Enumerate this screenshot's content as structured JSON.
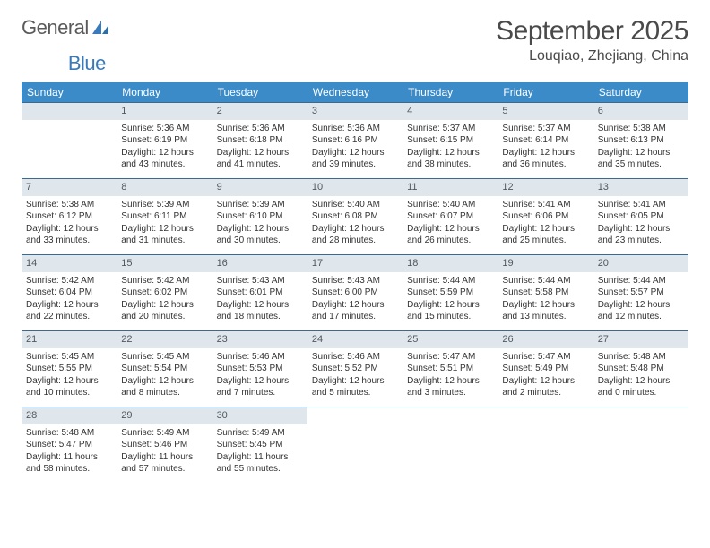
{
  "brand": {
    "part1": "General",
    "part2": "Blue"
  },
  "title": "September 2025",
  "location": "Louqiao, Zhejiang, China",
  "colors": {
    "header_bg": "#3b8bc9",
    "header_text": "#ffffff",
    "daynum_bg": "#e0e7ec",
    "rule": "#3b6a8f",
    "text": "#333333",
    "title_text": "#4a4a4a",
    "logo_gray": "#5a5a5a",
    "logo_blue": "#3a7ab8",
    "page_bg": "#ffffff"
  },
  "dow": [
    "Sunday",
    "Monday",
    "Tuesday",
    "Wednesday",
    "Thursday",
    "Friday",
    "Saturday"
  ],
  "weeks": [
    [
      null,
      {
        "n": "1",
        "sr": "Sunrise: 5:36 AM",
        "ss": "Sunset: 6:19 PM",
        "d1": "Daylight: 12 hours",
        "d2": "and 43 minutes."
      },
      {
        "n": "2",
        "sr": "Sunrise: 5:36 AM",
        "ss": "Sunset: 6:18 PM",
        "d1": "Daylight: 12 hours",
        "d2": "and 41 minutes."
      },
      {
        "n": "3",
        "sr": "Sunrise: 5:36 AM",
        "ss": "Sunset: 6:16 PM",
        "d1": "Daylight: 12 hours",
        "d2": "and 39 minutes."
      },
      {
        "n": "4",
        "sr": "Sunrise: 5:37 AM",
        "ss": "Sunset: 6:15 PM",
        "d1": "Daylight: 12 hours",
        "d2": "and 38 minutes."
      },
      {
        "n": "5",
        "sr": "Sunrise: 5:37 AM",
        "ss": "Sunset: 6:14 PM",
        "d1": "Daylight: 12 hours",
        "d2": "and 36 minutes."
      },
      {
        "n": "6",
        "sr": "Sunrise: 5:38 AM",
        "ss": "Sunset: 6:13 PM",
        "d1": "Daylight: 12 hours",
        "d2": "and 35 minutes."
      }
    ],
    [
      {
        "n": "7",
        "sr": "Sunrise: 5:38 AM",
        "ss": "Sunset: 6:12 PM",
        "d1": "Daylight: 12 hours",
        "d2": "and 33 minutes."
      },
      {
        "n": "8",
        "sr": "Sunrise: 5:39 AM",
        "ss": "Sunset: 6:11 PM",
        "d1": "Daylight: 12 hours",
        "d2": "and 31 minutes."
      },
      {
        "n": "9",
        "sr": "Sunrise: 5:39 AM",
        "ss": "Sunset: 6:10 PM",
        "d1": "Daylight: 12 hours",
        "d2": "and 30 minutes."
      },
      {
        "n": "10",
        "sr": "Sunrise: 5:40 AM",
        "ss": "Sunset: 6:08 PM",
        "d1": "Daylight: 12 hours",
        "d2": "and 28 minutes."
      },
      {
        "n": "11",
        "sr": "Sunrise: 5:40 AM",
        "ss": "Sunset: 6:07 PM",
        "d1": "Daylight: 12 hours",
        "d2": "and 26 minutes."
      },
      {
        "n": "12",
        "sr": "Sunrise: 5:41 AM",
        "ss": "Sunset: 6:06 PM",
        "d1": "Daylight: 12 hours",
        "d2": "and 25 minutes."
      },
      {
        "n": "13",
        "sr": "Sunrise: 5:41 AM",
        "ss": "Sunset: 6:05 PM",
        "d1": "Daylight: 12 hours",
        "d2": "and 23 minutes."
      }
    ],
    [
      {
        "n": "14",
        "sr": "Sunrise: 5:42 AM",
        "ss": "Sunset: 6:04 PM",
        "d1": "Daylight: 12 hours",
        "d2": "and 22 minutes."
      },
      {
        "n": "15",
        "sr": "Sunrise: 5:42 AM",
        "ss": "Sunset: 6:02 PM",
        "d1": "Daylight: 12 hours",
        "d2": "and 20 minutes."
      },
      {
        "n": "16",
        "sr": "Sunrise: 5:43 AM",
        "ss": "Sunset: 6:01 PM",
        "d1": "Daylight: 12 hours",
        "d2": "and 18 minutes."
      },
      {
        "n": "17",
        "sr": "Sunrise: 5:43 AM",
        "ss": "Sunset: 6:00 PM",
        "d1": "Daylight: 12 hours",
        "d2": "and 17 minutes."
      },
      {
        "n": "18",
        "sr": "Sunrise: 5:44 AM",
        "ss": "Sunset: 5:59 PM",
        "d1": "Daylight: 12 hours",
        "d2": "and 15 minutes."
      },
      {
        "n": "19",
        "sr": "Sunrise: 5:44 AM",
        "ss": "Sunset: 5:58 PM",
        "d1": "Daylight: 12 hours",
        "d2": "and 13 minutes."
      },
      {
        "n": "20",
        "sr": "Sunrise: 5:44 AM",
        "ss": "Sunset: 5:57 PM",
        "d1": "Daylight: 12 hours",
        "d2": "and 12 minutes."
      }
    ],
    [
      {
        "n": "21",
        "sr": "Sunrise: 5:45 AM",
        "ss": "Sunset: 5:55 PM",
        "d1": "Daylight: 12 hours",
        "d2": "and 10 minutes."
      },
      {
        "n": "22",
        "sr": "Sunrise: 5:45 AM",
        "ss": "Sunset: 5:54 PM",
        "d1": "Daylight: 12 hours",
        "d2": "and 8 minutes."
      },
      {
        "n": "23",
        "sr": "Sunrise: 5:46 AM",
        "ss": "Sunset: 5:53 PM",
        "d1": "Daylight: 12 hours",
        "d2": "and 7 minutes."
      },
      {
        "n": "24",
        "sr": "Sunrise: 5:46 AM",
        "ss": "Sunset: 5:52 PM",
        "d1": "Daylight: 12 hours",
        "d2": "and 5 minutes."
      },
      {
        "n": "25",
        "sr": "Sunrise: 5:47 AM",
        "ss": "Sunset: 5:51 PM",
        "d1": "Daylight: 12 hours",
        "d2": "and 3 minutes."
      },
      {
        "n": "26",
        "sr": "Sunrise: 5:47 AM",
        "ss": "Sunset: 5:49 PM",
        "d1": "Daylight: 12 hours",
        "d2": "and 2 minutes."
      },
      {
        "n": "27",
        "sr": "Sunrise: 5:48 AM",
        "ss": "Sunset: 5:48 PM",
        "d1": "Daylight: 12 hours",
        "d2": "and 0 minutes."
      }
    ],
    [
      {
        "n": "28",
        "sr": "Sunrise: 5:48 AM",
        "ss": "Sunset: 5:47 PM",
        "d1": "Daylight: 11 hours",
        "d2": "and 58 minutes."
      },
      {
        "n": "29",
        "sr": "Sunrise: 5:49 AM",
        "ss": "Sunset: 5:46 PM",
        "d1": "Daylight: 11 hours",
        "d2": "and 57 minutes."
      },
      {
        "n": "30",
        "sr": "Sunrise: 5:49 AM",
        "ss": "Sunset: 5:45 PM",
        "d1": "Daylight: 11 hours",
        "d2": "and 55 minutes."
      },
      null,
      null,
      null,
      null
    ]
  ]
}
